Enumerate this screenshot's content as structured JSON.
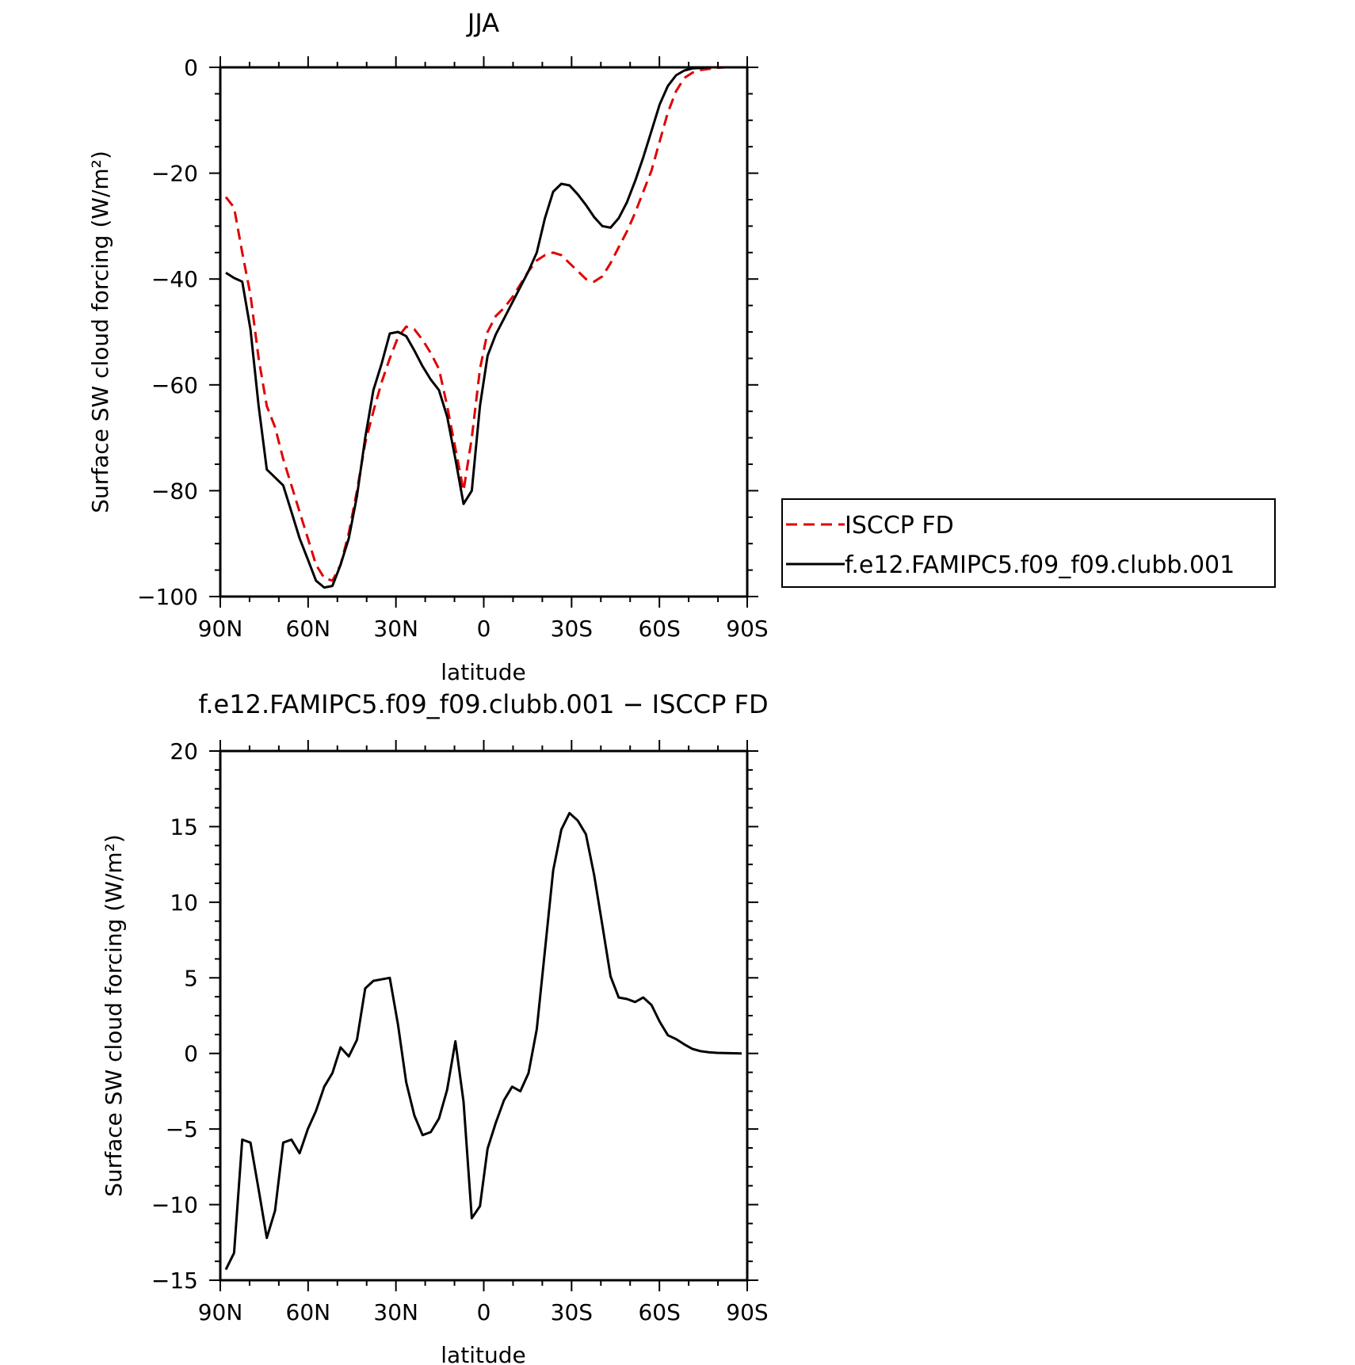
{
  "chart_data": [
    {
      "type": "line",
      "title": "JJA",
      "xlabel": "latitude",
      "ylabel": "Surface SW cloud forcing (W/m²)",
      "xlim": [
        90,
        -90
      ],
      "ylim": [
        -100,
        0
      ],
      "x_ticks": [
        90,
        60,
        30,
        0,
        -30,
        -60,
        -90
      ],
      "x_tick_labels": [
        "90N",
        "60N",
        "30N",
        "0",
        "30S",
        "60S",
        "90S"
      ],
      "y_ticks": [
        0,
        -20,
        -40,
        -60,
        -80,
        -100
      ],
      "y_tick_labels": [
        "0",
        "−20",
        "−40",
        "−60",
        "−80",
        "−100"
      ],
      "legend": "outside-right",
      "grid": false,
      "series": [
        {
          "name": "ISCCP FD",
          "color": "#e00000",
          "dash": "dashed",
          "x": [
            88.1,
            85.3,
            82.5,
            79.7,
            76.9,
            74.1,
            71.3,
            68.5,
            65.7,
            62.9,
            60.1,
            57.3,
            54.5,
            51.7,
            48.9,
            46.1,
            43.3,
            40.5,
            37.7,
            34.9,
            32.1,
            29.3,
            26.5,
            23.7,
            20.9,
            18.1,
            15.3,
            12.5,
            9.7,
            6.9,
            4.1,
            1.3,
            -1.3,
            -4.1,
            -6.9,
            -9.7,
            -12.5,
            -15.3,
            -18.1,
            -20.9,
            -23.7,
            -26.5,
            -29.3,
            -32.1,
            -34.9,
            -37.7,
            -40.5,
            -43.3,
            -46.1,
            -48.9,
            -51.7,
            -54.5,
            -57.3,
            -60.1,
            -62.9,
            -65.7,
            -68.5,
            -71.3,
            -74.1,
            -76.9,
            -79.7,
            -82.5,
            -85.3,
            -88.1
          ],
          "y": [
            -24.5,
            -26.5,
            -35,
            -43,
            -55,
            -64,
            -68,
            -74,
            -79,
            -84,
            -89,
            -94,
            -96.5,
            -97,
            -94,
            -88,
            -80,
            -71,
            -65,
            -59.5,
            -55,
            -51,
            -49,
            -49.5,
            -51.5,
            -54,
            -57,
            -64,
            -72,
            -80,
            -70,
            -57,
            -50,
            -47,
            -45.5,
            -43.5,
            -41,
            -38.5,
            -36.5,
            -35.5,
            -35,
            -35.5,
            -37,
            -38.5,
            -40,
            -40.5,
            -39.5,
            -37,
            -34,
            -31,
            -27.5,
            -23.5,
            -19.5,
            -14,
            -8.5,
            -4.5,
            -2,
            -1,
            -0.5,
            -0.3,
            -0.1,
            0,
            0,
            0
          ]
        },
        {
          "name": "f.e12.FAMIPC5.f09_f09.clubb.001",
          "color": "#000000",
          "dash": "solid",
          "x": [
            88.1,
            85.3,
            82.5,
            79.7,
            76.9,
            74.1,
            71.3,
            68.5,
            65.7,
            62.9,
            60.1,
            57.3,
            54.5,
            51.7,
            48.9,
            46.1,
            43.3,
            40.5,
            37.7,
            34.9,
            32.1,
            29.3,
            26.5,
            23.7,
            20.9,
            18.1,
            15.3,
            12.5,
            9.7,
            6.9,
            4.1,
            1.3,
            -1.3,
            -4.1,
            -6.9,
            -9.7,
            -12.5,
            -15.3,
            -18.1,
            -20.9,
            -23.7,
            -26.5,
            -29.3,
            -32.1,
            -34.9,
            -37.7,
            -40.5,
            -43.3,
            -46.1,
            -48.9,
            -51.7,
            -54.5,
            -57.3,
            -60.1,
            -62.9,
            -65.7,
            -68.5,
            -71.3,
            -74.1,
            -76.9,
            -79.7,
            -82.5,
            -85.3,
            -88.1
          ],
          "y": [
            -38.8,
            -39.8,
            -40.5,
            -49.5,
            -64,
            -76,
            -77.5,
            -79,
            -84,
            -89,
            -93,
            -97,
            -98.3,
            -98,
            -94,
            -89,
            -81,
            -70,
            -61,
            -56,
            -50.3,
            -50,
            -50.8,
            -53.5,
            -56.5,
            -59,
            -61,
            -66,
            -74,
            -82.5,
            -80,
            -64,
            -54.5,
            -50.5,
            -47.5,
            -44.5,
            -41.5,
            -38.5,
            -35,
            -28.5,
            -23.5,
            -22,
            -22.3,
            -24,
            -26,
            -28.3,
            -30,
            -30.3,
            -28.5,
            -25.5,
            -21.5,
            -17,
            -12,
            -7,
            -3.5,
            -1.5,
            -0.6,
            -0.2,
            -0.1,
            0,
            0,
            0,
            0,
            0
          ]
        }
      ]
    },
    {
      "type": "line",
      "title": "f.e12.FAMIPC5.f09_f09.clubb.001 − ISCCP FD",
      "xlabel": "latitude",
      "ylabel": "Surface SW cloud forcing (W/m²)",
      "xlim": [
        90,
        -90
      ],
      "ylim": [
        -15,
        20
      ],
      "x_ticks": [
        90,
        60,
        30,
        0,
        -30,
        -60,
        -90
      ],
      "x_tick_labels": [
        "90N",
        "60N",
        "30N",
        "0",
        "30S",
        "60S",
        "90S"
      ],
      "y_ticks": [
        20,
        15,
        10,
        5,
        0,
        -5,
        -10,
        -15
      ],
      "y_tick_labels": [
        "20",
        "15",
        "10",
        "5",
        "0",
        "−5",
        "−10",
        "−15"
      ],
      "grid": false,
      "series": [
        {
          "color": "#000000",
          "dash": "solid",
          "x": [
            88.1,
            85.3,
            82.5,
            79.7,
            76.9,
            74.1,
            71.3,
            68.5,
            65.7,
            62.9,
            60.1,
            57.3,
            54.5,
            51.7,
            48.9,
            46.1,
            43.3,
            40.5,
            37.7,
            34.9,
            32.1,
            29.3,
            26.5,
            23.7,
            20.9,
            18.1,
            15.3,
            12.5,
            9.7,
            6.9,
            4.1,
            1.3,
            -1.3,
            -4.1,
            -6.9,
            -9.7,
            -12.5,
            -15.3,
            -18.1,
            -20.9,
            -23.7,
            -26.5,
            -29.3,
            -32.1,
            -34.9,
            -37.7,
            -40.5,
            -43.3,
            -46.1,
            -48.9,
            -51.7,
            -54.5,
            -57.3,
            -60.1,
            -62.9,
            -65.7,
            -68.5,
            -71.3,
            -74.1,
            -76.9,
            -79.7,
            -82.5,
            -85.3,
            -88.1
          ],
          "y": [
            -14.3,
            -13.2,
            -5.7,
            -5.9,
            -9,
            -12.2,
            -10.4,
            -5.9,
            -5.7,
            -6.6,
            -5,
            -3.8,
            -2.2,
            -1.3,
            0.4,
            -0.2,
            0.9,
            4.3,
            4.8,
            4.9,
            5,
            1.9,
            -1.9,
            -4.1,
            -5.4,
            -5.2,
            -4.3,
            -2.4,
            0.8,
            -3.2,
            -10.9,
            -10.1,
            -6.3,
            -4.6,
            -3.1,
            -2.2,
            -2.5,
            -1.3,
            1.6,
            6.8,
            12.1,
            14.8,
            15.9,
            15.4,
            14.5,
            11.8,
            8.5,
            5.1,
            3.7,
            3.6,
            3.4,
            3.7,
            3.2,
            2.1,
            1.2,
            0.95,
            0.6,
            0.3,
            0.15,
            0.08,
            0.04,
            0.02,
            0.01,
            0
          ]
        }
      ]
    }
  ]
}
